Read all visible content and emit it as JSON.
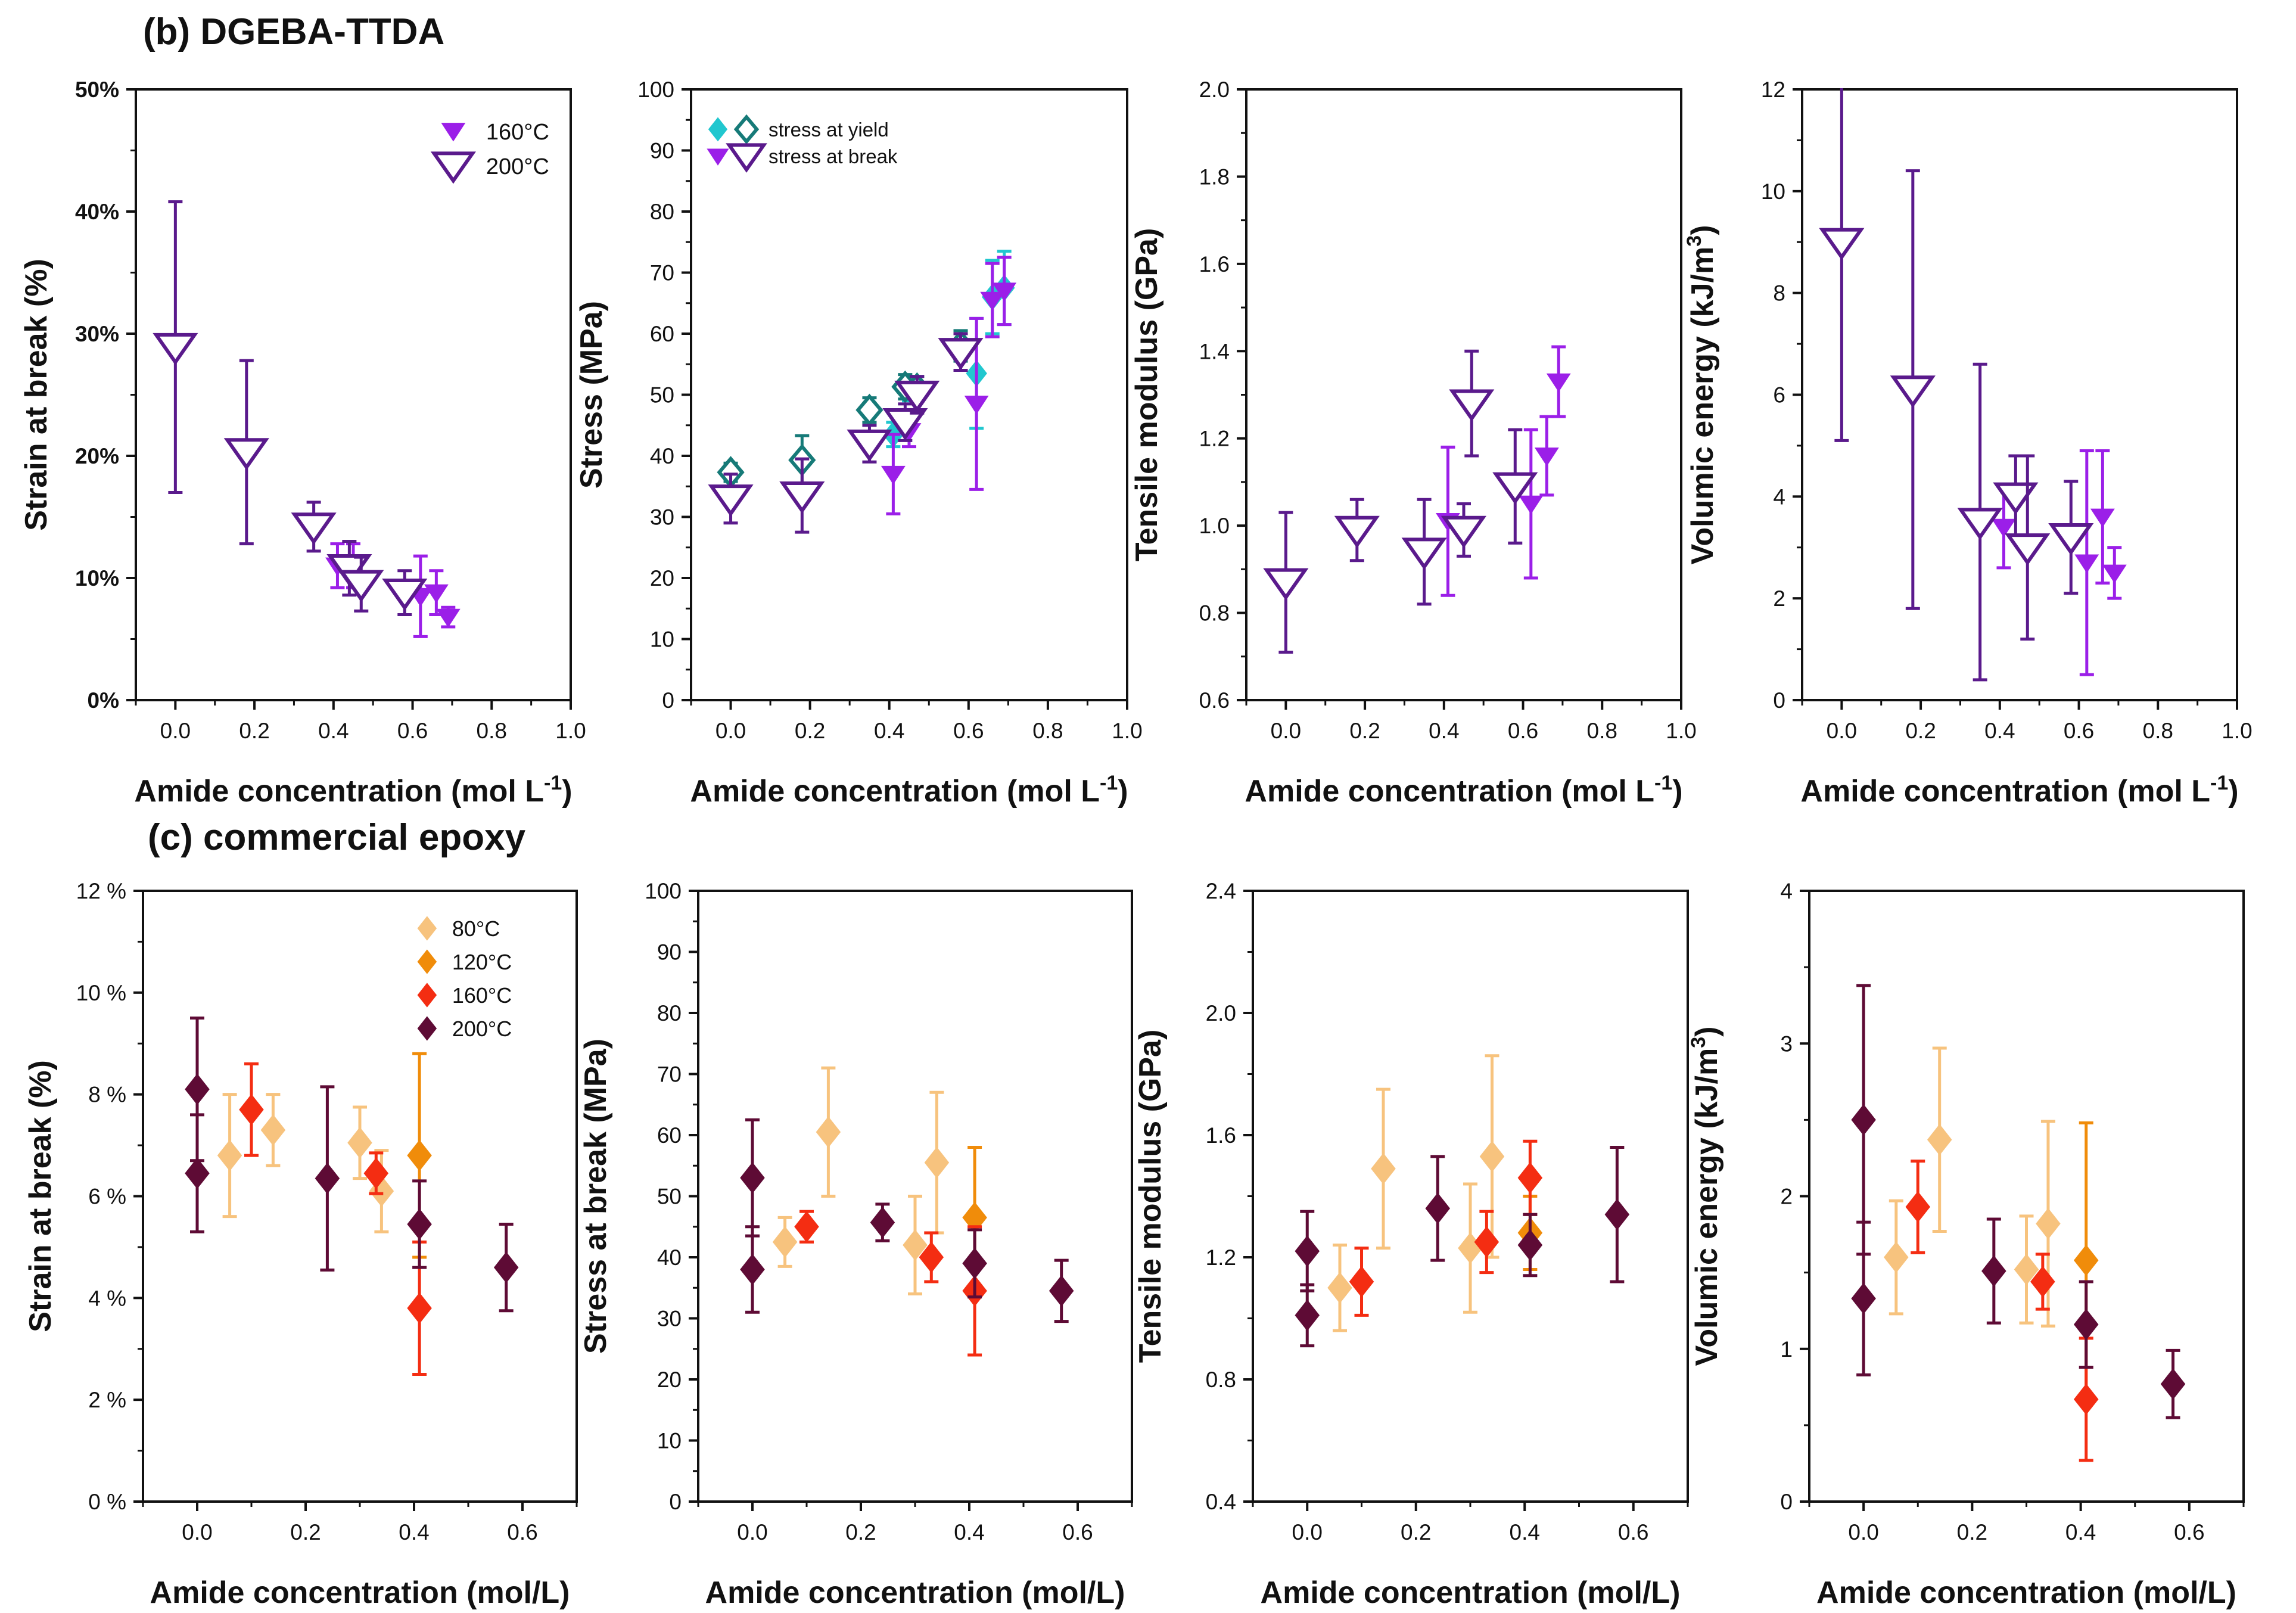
{
  "sections": {
    "b": {
      "title": "(b) DGEBA-TTDA"
    },
    "c": {
      "title": "(c) commercial epoxy"
    }
  },
  "colors": {
    "purple_solid": "#9B1FE8",
    "purple_open": "#5A1A8C",
    "cyan": "#21C7CF",
    "teal_open": "#167A78",
    "c80": "#F7C37E",
    "c120": "#F08C0A",
    "c160": "#F42D12",
    "c200": "#5E0B35"
  },
  "chart_data": [
    {
      "id": "b1",
      "type": "scatter",
      "title": "",
      "xlabel": "Amide concentration (mol L",
      "xlabel_sup": "-1",
      "xlabel_end": ")",
      "ylabel": "Strain at break (%)",
      "xlim": [
        -0.1,
        1.0
      ],
      "ylim": [
        0,
        50
      ],
      "xticks": [
        0.0,
        0.2,
        0.4,
        0.6,
        0.8,
        1.0
      ],
      "xtick_labels": [
        "0.0",
        "0.2",
        "0.4",
        "0.6",
        "0.8",
        "1.0"
      ],
      "yticks": [
        0,
        10,
        20,
        30,
        40,
        50
      ],
      "ytick_labels": [
        "0%",
        "10%",
        "20%",
        "30%",
        "40%",
        "50%"
      ],
      "legend": {
        "position": "top-right",
        "entries": [
          {
            "label": "160°C",
            "series": "160°C"
          },
          {
            "label": "200°C",
            "series": "200°C"
          }
        ]
      },
      "series": [
        {
          "name": "160°C",
          "marker": "tri-filled",
          "color": "purple_solid",
          "x": [
            0.41,
            0.45,
            0.62,
            0.66,
            0.69
          ],
          "y": [
            11.0,
            11.0,
            8.5,
            8.8,
            6.8
          ],
          "err": [
            1.8,
            1.8,
            3.3,
            1.8,
            0.8
          ]
        },
        {
          "name": "200°C",
          "marker": "tri-open",
          "color": "purple_open",
          "x": [
            0.0,
            0.18,
            0.35,
            0.44,
            0.47,
            0.58
          ],
          "y": [
            28.9,
            20.3,
            14.2,
            10.8,
            9.5,
            8.8
          ],
          "err": [
            11.9,
            7.5,
            2.0,
            2.2,
            2.2,
            1.8
          ]
        }
      ]
    },
    {
      "id": "b2",
      "type": "scatter",
      "title": "",
      "xlabel": "Amide concentration (mol L",
      "xlabel_sup": "-1",
      "xlabel_end": ")",
      "ylabel": "Stress (MPa)",
      "xlim": [
        -0.1,
        1.0
      ],
      "ylim": [
        0,
        100
      ],
      "xticks": [
        0.0,
        0.2,
        0.4,
        0.6,
        0.8,
        1.0
      ],
      "xtick_labels": [
        "0.0",
        "0.2",
        "0.4",
        "0.6",
        "0.8",
        "1.0"
      ],
      "yticks": [
        0,
        10,
        20,
        30,
        40,
        50,
        60,
        70,
        80,
        90,
        100
      ],
      "ytick_labels": [
        "0",
        "10",
        "20",
        "30",
        "40",
        "50",
        "60",
        "70",
        "80",
        "90",
        "100"
      ],
      "legend": {
        "position": "top-left",
        "entries": [
          {
            "label": "stress at yield",
            "series": [
              "yield 160°C",
              "yield 200°C"
            ]
          },
          {
            "label": "stress at break",
            "series": [
              "break 160°C",
              "break 200°C"
            ]
          }
        ]
      },
      "series": [
        {
          "name": "yield 160°C",
          "marker": "diamond-filled",
          "color": "cyan",
          "x": [
            0.41,
            0.45,
            0.62,
            0.66,
            0.69
          ],
          "y": [
            43.5,
            51.0,
            53.5,
            66.0,
            67.5
          ],
          "err": [
            2.0,
            2.0,
            9.0,
            6.0,
            6.0
          ]
        },
        {
          "name": "yield 200°C",
          "marker": "diamond-open",
          "color": "teal_open",
          "x": [
            0.0,
            0.18,
            0.35,
            0.44,
            0.47,
            0.58
          ],
          "y": [
            37.3,
            39.3,
            47.5,
            51.3,
            51.0,
            58.0
          ],
          "err": [
            1.5,
            4.0,
            2.0,
            2.0,
            2.0,
            2.5
          ]
        },
        {
          "name": "break 160°C",
          "marker": "tri-filled",
          "color": "purple_solid",
          "x": [
            0.41,
            0.45,
            0.62,
            0.66,
            0.69
          ],
          "y": [
            37.0,
            44.0,
            48.5,
            65.5,
            67.0
          ],
          "err": [
            6.5,
            2.5,
            14.0,
            6.0,
            5.5
          ]
        },
        {
          "name": "break 200°C",
          "marker": "tri-open",
          "color": "purple_open",
          "x": [
            0.0,
            0.18,
            0.35,
            0.44,
            0.47,
            0.58
          ],
          "y": [
            33.0,
            33.5,
            42.0,
            45.5,
            50.0,
            57.0
          ],
          "err": [
            4.0,
            6.0,
            3.0,
            3.0,
            3.0,
            3.0
          ]
        }
      ]
    },
    {
      "id": "b3",
      "type": "scatter",
      "title": "",
      "xlabel": "Amide concentration (mol L",
      "xlabel_sup": "-1",
      "xlabel_end": ")",
      "ylabel": "Tensile modulus (GPa)",
      "xlim": [
        -0.1,
        1.0
      ],
      "ylim": [
        0.6,
        2.0
      ],
      "xticks": [
        0.0,
        0.2,
        0.4,
        0.6,
        0.8,
        1.0
      ],
      "xtick_labels": [
        "0.0",
        "0.2",
        "0.4",
        "0.6",
        "0.8",
        "1.0"
      ],
      "yticks": [
        0.6,
        0.8,
        1.0,
        1.2,
        1.4,
        1.6,
        1.8,
        2.0
      ],
      "ytick_labels": [
        "0.6",
        "0.8",
        "1.0",
        "1.2",
        "1.4",
        "1.6",
        "1.8",
        "2.0"
      ],
      "series": [
        {
          "name": "160°C",
          "marker": "tri-filled",
          "color": "purple_solid",
          "x": [
            0.41,
            0.62,
            0.66,
            0.69
          ],
          "y": [
            1.01,
            1.05,
            1.16,
            1.33
          ],
          "err": [
            0.17,
            0.17,
            0.09,
            0.08
          ]
        },
        {
          "name": "200°C",
          "marker": "tri-open",
          "color": "purple_open",
          "x": [
            0.0,
            0.18,
            0.35,
            0.45,
            0.47,
            0.58
          ],
          "y": [
            0.87,
            0.99,
            0.94,
            0.99,
            1.28,
            1.09
          ],
          "err": [
            0.16,
            0.07,
            0.12,
            0.06,
            0.12,
            0.13
          ]
        }
      ]
    },
    {
      "id": "b4",
      "type": "scatter",
      "title": "",
      "xlabel": "Amide concentration (mol L",
      "xlabel_sup": "-1",
      "xlabel_end": ")",
      "ylabel": "Volumic energy (kJ/m",
      "ylabel_sup": "3",
      "ylabel_end": ")",
      "xlim": [
        -0.1,
        1.0
      ],
      "ylim": [
        0,
        12
      ],
      "xticks": [
        0.0,
        0.2,
        0.4,
        0.6,
        0.8,
        1.0
      ],
      "xtick_labels": [
        "0.0",
        "0.2",
        "0.4",
        "0.6",
        "0.8",
        "1.0"
      ],
      "yticks": [
        0,
        2,
        4,
        6,
        8,
        10,
        12
      ],
      "ytick_labels": [
        "0",
        "2",
        "4",
        "6",
        "8",
        "10",
        "12"
      ],
      "series": [
        {
          "name": "160°C",
          "marker": "tri-filled",
          "color": "purple_solid",
          "x": [
            0.41,
            0.62,
            0.66,
            0.69
          ],
          "y": [
            3.4,
            2.7,
            3.6,
            2.5
          ],
          "err": [
            0.8,
            2.2,
            1.3,
            0.5
          ]
        },
        {
          "name": "200°C",
          "marker": "tri-open",
          "color": "purple_open",
          "x": [
            0.0,
            0.18,
            0.35,
            0.44,
            0.47,
            0.58
          ],
          "y": [
            9.0,
            6.1,
            3.5,
            4.0,
            3.0,
            3.2
          ],
          "err": [
            3.9,
            4.3,
            3.1,
            0.8,
            1.8,
            1.1
          ]
        }
      ]
    },
    {
      "id": "c1",
      "type": "scatter",
      "title": "",
      "xlabel": "Amide concentration (mol/L)",
      "ylabel": "Strain at break (%)",
      "xlim": [
        -0.1,
        0.7
      ],
      "ylim": [
        0,
        12
      ],
      "xticks": [
        0.0,
        0.2,
        0.4,
        0.6
      ],
      "xtick_labels": [
        "0.0",
        "0.2",
        "0.4",
        "0.6"
      ],
      "yticks": [
        0,
        2,
        4,
        6,
        8,
        10,
        12
      ],
      "ytick_labels": [
        "0 %",
        "2 %",
        "4 %",
        "6 %",
        "8 %",
        "10 %",
        "12 %"
      ],
      "legend": {
        "position": "top-right",
        "entries": [
          {
            "label": "80°C",
            "series": "80°C"
          },
          {
            "label": "120°C",
            "series": "120°C"
          },
          {
            "label": "160°C",
            "series": "160°C"
          },
          {
            "label": "200°C",
            "series": "200°C"
          }
        ]
      },
      "series": [
        {
          "name": "80°C",
          "marker": "diamond-filled",
          "color": "c80",
          "x": [
            0.06,
            0.14,
            0.3,
            0.34
          ],
          "y": [
            6.8,
            7.3,
            7.05,
            6.1
          ],
          "err": [
            1.2,
            0.7,
            0.7,
            0.8
          ]
        },
        {
          "name": "120°C",
          "marker": "diamond-filled",
          "color": "c120",
          "x": [
            0.41
          ],
          "y": [
            6.8
          ],
          "err": [
            2.0
          ]
        },
        {
          "name": "160°C",
          "marker": "diamond-filled",
          "color": "c160",
          "x": [
            0.1,
            0.33,
            0.41
          ],
          "y": [
            7.7,
            6.45,
            3.8
          ],
          "err": [
            0.9,
            0.4,
            1.3
          ]
        },
        {
          "name": "200°C",
          "marker": "diamond-filled",
          "color": "c200",
          "x": [
            0.0,
            0.0,
            0.24,
            0.41,
            0.57
          ],
          "y": [
            8.1,
            6.45,
            6.35,
            5.45,
            4.6
          ],
          "err": [
            1.4,
            1.15,
            1.8,
            0.85,
            0.85
          ]
        }
      ]
    },
    {
      "id": "c2",
      "type": "scatter",
      "title": "",
      "xlabel": "Amide concentration (mol/L)",
      "ylabel": "Stress at break (MPa)",
      "xlim": [
        -0.1,
        0.7
      ],
      "ylim": [
        0,
        100
      ],
      "xticks": [
        0.0,
        0.2,
        0.4,
        0.6
      ],
      "xtick_labels": [
        "0.0",
        "0.2",
        "0.4",
        "0.6"
      ],
      "yticks": [
        0,
        10,
        20,
        30,
        40,
        50,
        60,
        70,
        80,
        90,
        100
      ],
      "ytick_labels": [
        "0",
        "10",
        "20",
        "30",
        "40",
        "50",
        "60",
        "70",
        "80",
        "90",
        "100"
      ],
      "series": [
        {
          "name": "80°C",
          "marker": "diamond-filled",
          "color": "c80",
          "x": [
            0.06,
            0.14,
            0.3,
            0.34
          ],
          "y": [
            42.5,
            60.5,
            42.0,
            55.5
          ],
          "err": [
            4.0,
            10.5,
            8.0,
            11.5
          ]
        },
        {
          "name": "120°C",
          "marker": "diamond-filled",
          "color": "c120",
          "x": [
            0.41
          ],
          "y": [
            46.5
          ],
          "err": [
            11.5
          ]
        },
        {
          "name": "160°C",
          "marker": "diamond-filled",
          "color": "c160",
          "x": [
            0.1,
            0.33,
            0.41
          ],
          "y": [
            45.0,
            40.0,
            34.5
          ],
          "err": [
            2.5,
            4.0,
            10.5
          ]
        },
        {
          "name": "200°C",
          "marker": "diamond-filled",
          "color": "c200",
          "x": [
            0.0,
            0.0,
            0.24,
            0.41,
            0.57
          ],
          "y": [
            53.0,
            38.0,
            45.7,
            39.0,
            34.5
          ],
          "err": [
            9.5,
            7.0,
            3.0,
            5.5,
            5.0
          ]
        }
      ]
    },
    {
      "id": "c3",
      "type": "scatter",
      "title": "",
      "xlabel": "Amide concentration (mol/L)",
      "ylabel": "Tensile modulus (GPa)",
      "xlim": [
        -0.1,
        0.7
      ],
      "ylim": [
        0.4,
        2.4
      ],
      "xticks": [
        0.0,
        0.2,
        0.4,
        0.6
      ],
      "xtick_labels": [
        "0.0",
        "0.2",
        "0.4",
        "0.6"
      ],
      "yticks": [
        0.4,
        0.8,
        1.2,
        1.6,
        2.0,
        2.4
      ],
      "ytick_labels": [
        "0.4",
        "0.8",
        "1.2",
        "1.6",
        "2.0",
        "2.4"
      ],
      "series": [
        {
          "name": "80°C",
          "marker": "diamond-filled",
          "color": "c80",
          "x": [
            0.06,
            0.14,
            0.3,
            0.34
          ],
          "y": [
            1.1,
            1.49,
            1.23,
            1.53
          ],
          "err": [
            0.14,
            0.26,
            0.21,
            0.33
          ]
        },
        {
          "name": "120°C",
          "marker": "diamond-filled",
          "color": "c120",
          "x": [
            0.41
          ],
          "y": [
            1.28
          ],
          "err": [
            0.12
          ]
        },
        {
          "name": "160°C",
          "marker": "diamond-filled",
          "color": "c160",
          "x": [
            0.1,
            0.33,
            0.41
          ],
          "y": [
            1.12,
            1.25,
            1.46
          ],
          "err": [
            0.11,
            0.1,
            0.12
          ]
        },
        {
          "name": "200°C",
          "marker": "diamond-filled",
          "color": "c200",
          "x": [
            0.0,
            0.0,
            0.24,
            0.41,
            0.57
          ],
          "y": [
            1.22,
            1.01,
            1.36,
            1.24,
            1.34
          ],
          "err": [
            0.13,
            0.1,
            0.17,
            0.1,
            0.22
          ]
        }
      ]
    },
    {
      "id": "c4",
      "type": "scatter",
      "title": "",
      "xlabel": "Amide concentration (mol/L)",
      "ylabel": "Volumic energy (kJ/m",
      "ylabel_sup": "3",
      "ylabel_end": ")",
      "xlim": [
        -0.1,
        0.7
      ],
      "ylim": [
        0,
        4
      ],
      "xticks": [
        0.0,
        0.2,
        0.4,
        0.6
      ],
      "xtick_labels": [
        "0.0",
        "0.2",
        "0.4",
        "0.6"
      ],
      "yticks": [
        0,
        1,
        2,
        3,
        4
      ],
      "ytick_labels": [
        "0",
        "1",
        "2",
        "3",
        "4"
      ],
      "series": [
        {
          "name": "80°C",
          "marker": "diamond-filled",
          "color": "c80",
          "x": [
            0.06,
            0.14,
            0.3,
            0.34
          ],
          "y": [
            1.6,
            2.37,
            1.52,
            1.82
          ],
          "err": [
            0.37,
            0.6,
            0.35,
            0.67
          ]
        },
        {
          "name": "120°C",
          "marker": "diamond-filled",
          "color": "c120",
          "x": [
            0.41
          ],
          "y": [
            1.58
          ],
          "err": [
            0.9
          ]
        },
        {
          "name": "160°C",
          "marker": "diamond-filled",
          "color": "c160",
          "x": [
            0.1,
            0.33,
            0.41
          ],
          "y": [
            1.93,
            1.44,
            0.67
          ],
          "err": [
            0.3,
            0.18,
            0.4
          ]
        },
        {
          "name": "200°C",
          "marker": "diamond-filled",
          "color": "c200",
          "x": [
            0.0,
            0.0,
            0.24,
            0.41,
            0.57
          ],
          "y": [
            2.5,
            1.33,
            1.51,
            1.16,
            0.77
          ],
          "err": [
            0.88,
            0.5,
            0.34,
            0.28,
            0.22
          ]
        }
      ]
    }
  ]
}
